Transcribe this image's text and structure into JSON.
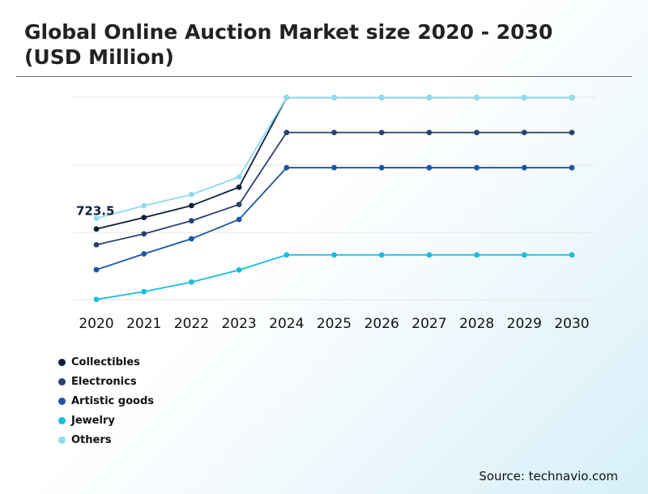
{
  "title": "Global Online Auction Market size 2020 - 2030 (USD Million)",
  "source": "Source: technavio.com",
  "chart_data": {
    "type": "line",
    "title": "Global Online Auction Market size 2020 - 2030 (USD Million)",
    "categories": [
      "2020",
      "2021",
      "2022",
      "2023",
      "2024",
      "2025",
      "2026",
      "2027",
      "2028",
      "2029",
      "2030"
    ],
    "ylim": [
      0,
      1800
    ],
    "grid": true,
    "legend_position": "bottom-left",
    "annotations": [
      {
        "series": "Others",
        "category": "2020",
        "label": "723.5"
      }
    ],
    "series": [
      {
        "name": "Collectibles",
        "color": "#0b1f3f",
        "values": [
          628,
          730,
          836,
          1000,
          1797,
          1797,
          1797,
          1797,
          1797,
          1797,
          1797
        ]
      },
      {
        "name": "Electronics",
        "color": "#2b4170",
        "values": [
          488,
          585,
          701,
          846,
          1486,
          1486,
          1486,
          1486,
          1486,
          1486,
          1486
        ]
      },
      {
        "name": "Artistic goods",
        "color": "#1a56a3",
        "values": [
          266,
          407,
          541,
          713,
          1173,
          1173,
          1173,
          1173,
          1173,
          1173,
          1173
        ]
      },
      {
        "name": "Jewelry",
        "color": "#15bedd",
        "values": 0,
        "values_list": [
          2,
          71,
          156,
          264,
          398,
          398,
          398,
          398,
          398,
          398,
          398
        ]
      },
      {
        "name": "Others",
        "color": "#8fdbee",
        "values": [
          723.5,
          835,
          934,
          1091,
          1797,
          1797,
          1797,
          1797,
          1797,
          1797,
          1797
        ]
      }
    ]
  }
}
